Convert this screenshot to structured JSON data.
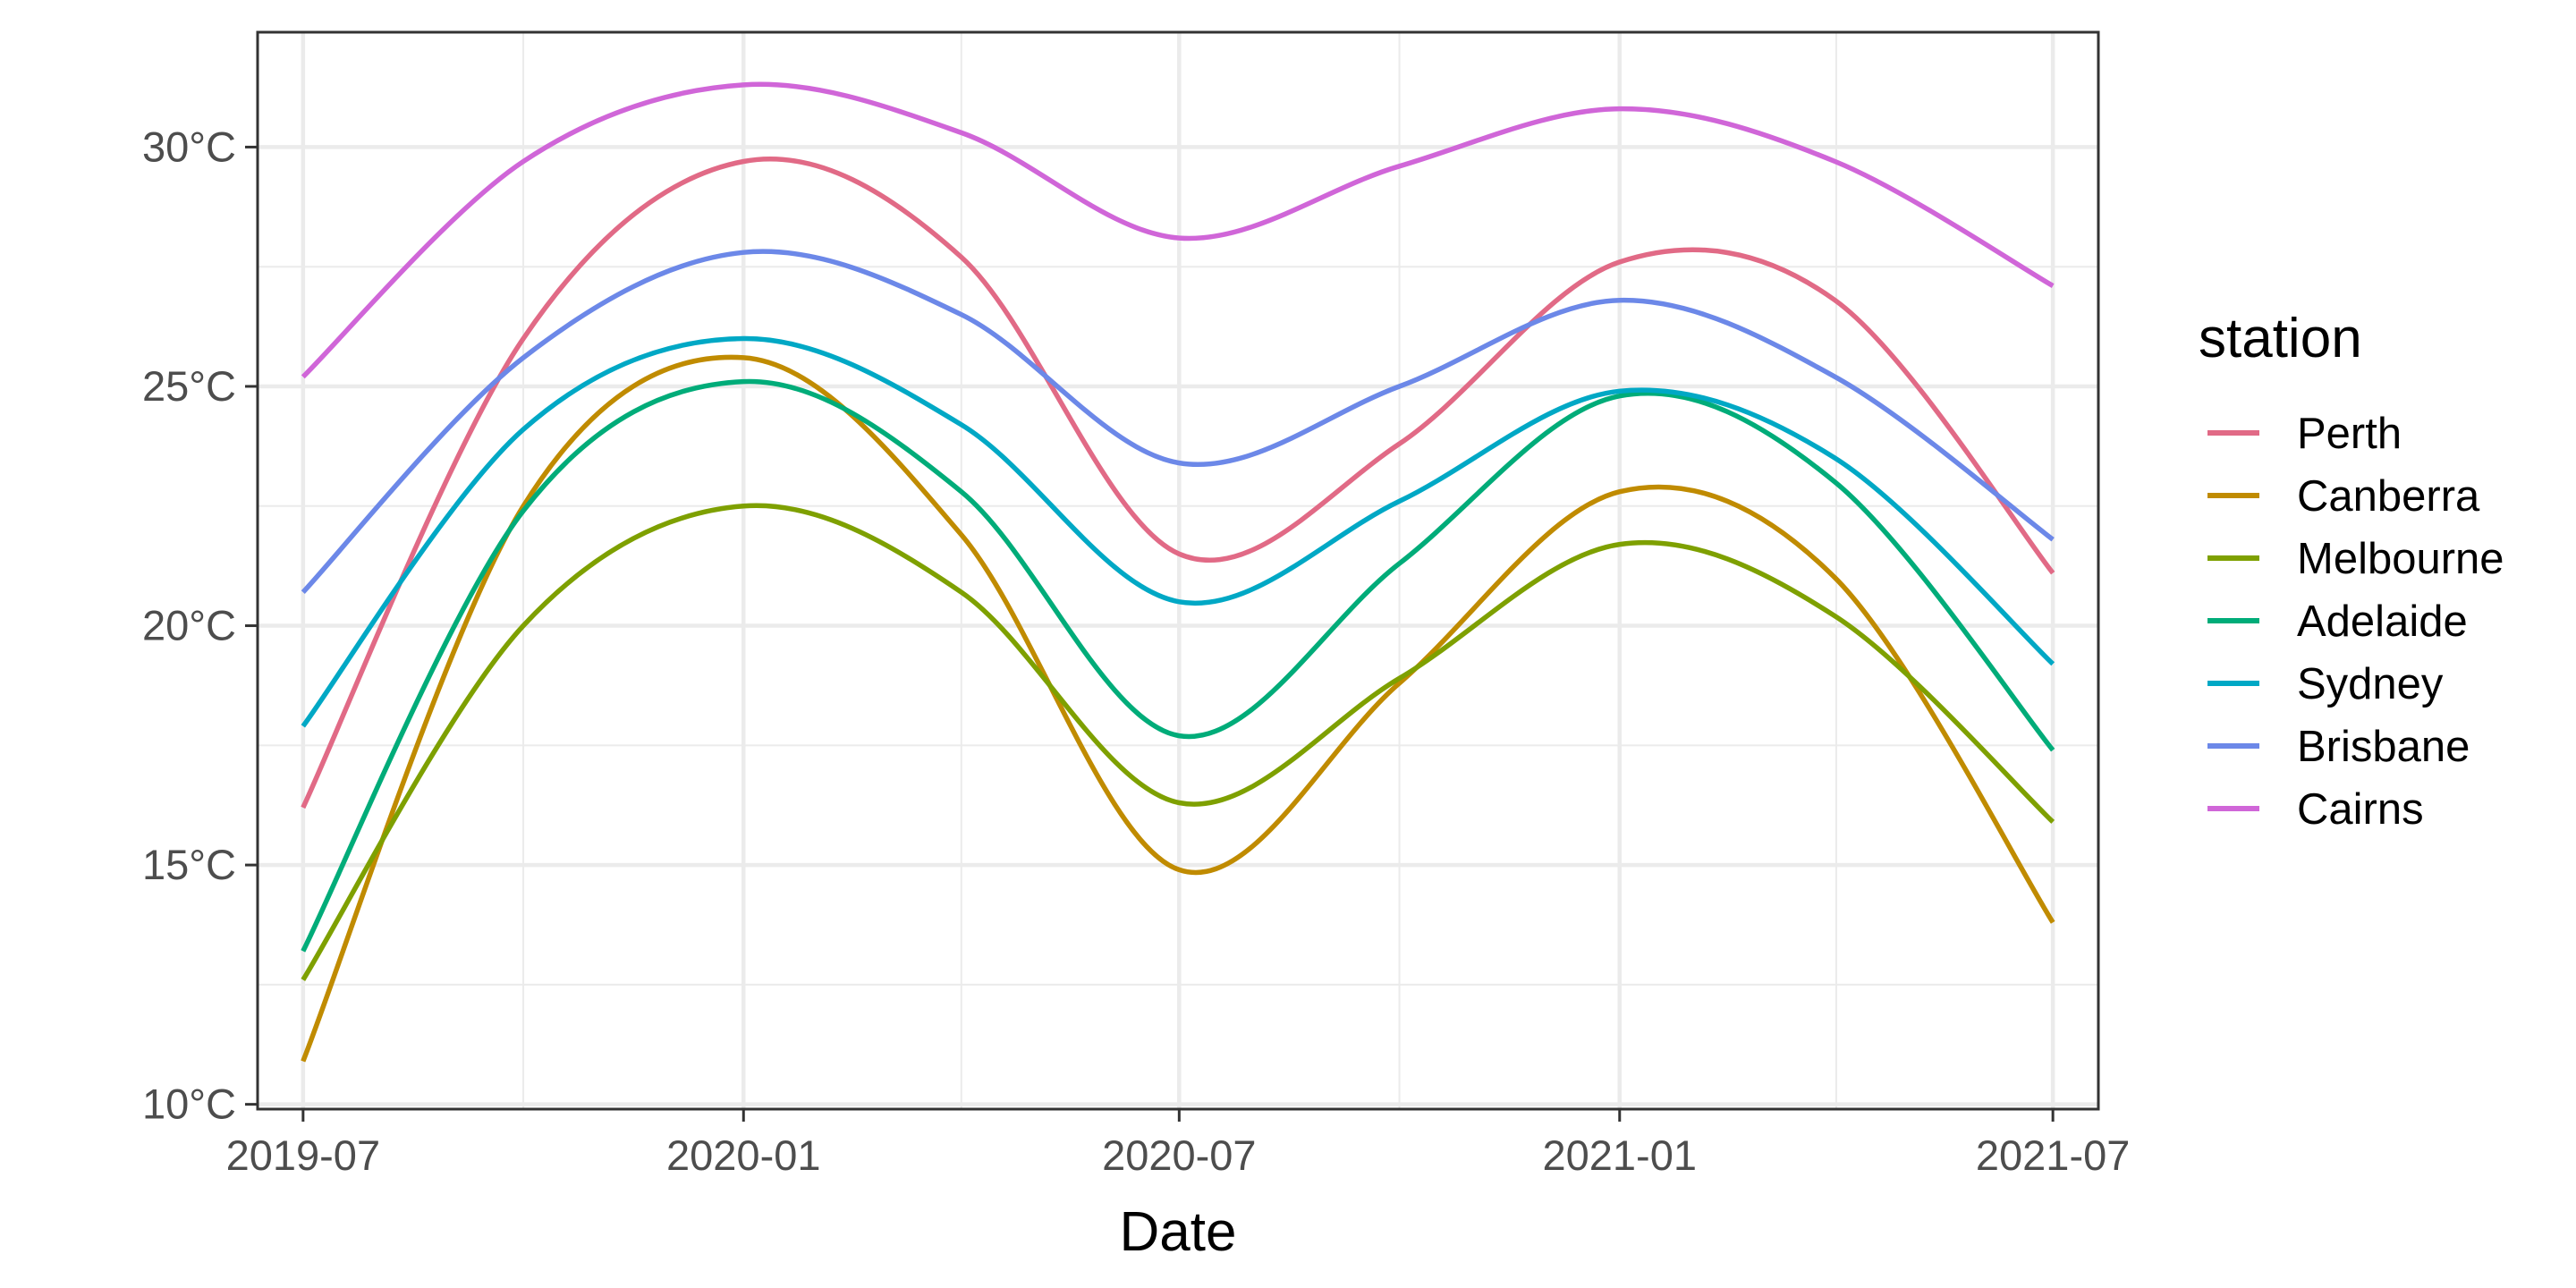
{
  "chart_data": {
    "type": "line",
    "title": "",
    "xlabel": "Date",
    "ylabel": "",
    "x_ticks": [
      "2019-07",
      "2020-01",
      "2020-07",
      "2021-01",
      "2021-07"
    ],
    "y_ticks": [
      "10°C",
      "15°C",
      "20°C",
      "25°C",
      "30°C"
    ],
    "x": [
      "2019-07",
      "2019-10",
      "2020-01",
      "2020-04",
      "2020-07",
      "2020-10",
      "2021-01",
      "2021-04",
      "2021-07"
    ],
    "xlim": [
      "2019-06-12",
      "2021-07-20"
    ],
    "ylim": [
      9.9,
      32.4
    ],
    "y_unit": "°C",
    "grid": true,
    "legend": {
      "title": "station",
      "position": "right"
    },
    "series": [
      {
        "name": "Perth",
        "color": "#E16A86",
        "values": [
          16.2,
          26.0,
          29.7,
          27.7,
          21.5,
          23.8,
          27.6,
          26.8,
          21.1
        ]
      },
      {
        "name": "Canberra",
        "color": "#C08B00",
        "values": [
          10.9,
          22.5,
          25.6,
          21.9,
          14.9,
          18.8,
          22.8,
          21.0,
          13.8
        ]
      },
      {
        "name": "Melbourne",
        "color": "#7EA000",
        "values": [
          12.6,
          20.0,
          22.5,
          20.7,
          16.3,
          18.9,
          21.7,
          20.2,
          15.9
        ]
      },
      {
        "name": "Adelaide",
        "color": "#00AC79",
        "values": [
          13.2,
          22.4,
          25.1,
          22.8,
          17.7,
          21.3,
          24.8,
          23.0,
          17.4
        ]
      },
      {
        "name": "Sydney",
        "color": "#00A8C5",
        "values": [
          17.9,
          24.1,
          26.0,
          24.2,
          20.5,
          22.6,
          24.9,
          23.5,
          19.2
        ]
      },
      {
        "name": "Brisbane",
        "color": "#6C88E8",
        "values": [
          20.7,
          25.6,
          27.8,
          26.5,
          23.4,
          25.0,
          26.8,
          25.2,
          21.8
        ]
      },
      {
        "name": "Cairns",
        "color": "#D066D8",
        "values": [
          25.2,
          29.7,
          31.3,
          30.3,
          28.1,
          29.6,
          30.8,
          29.7,
          27.1
        ]
      }
    ]
  }
}
